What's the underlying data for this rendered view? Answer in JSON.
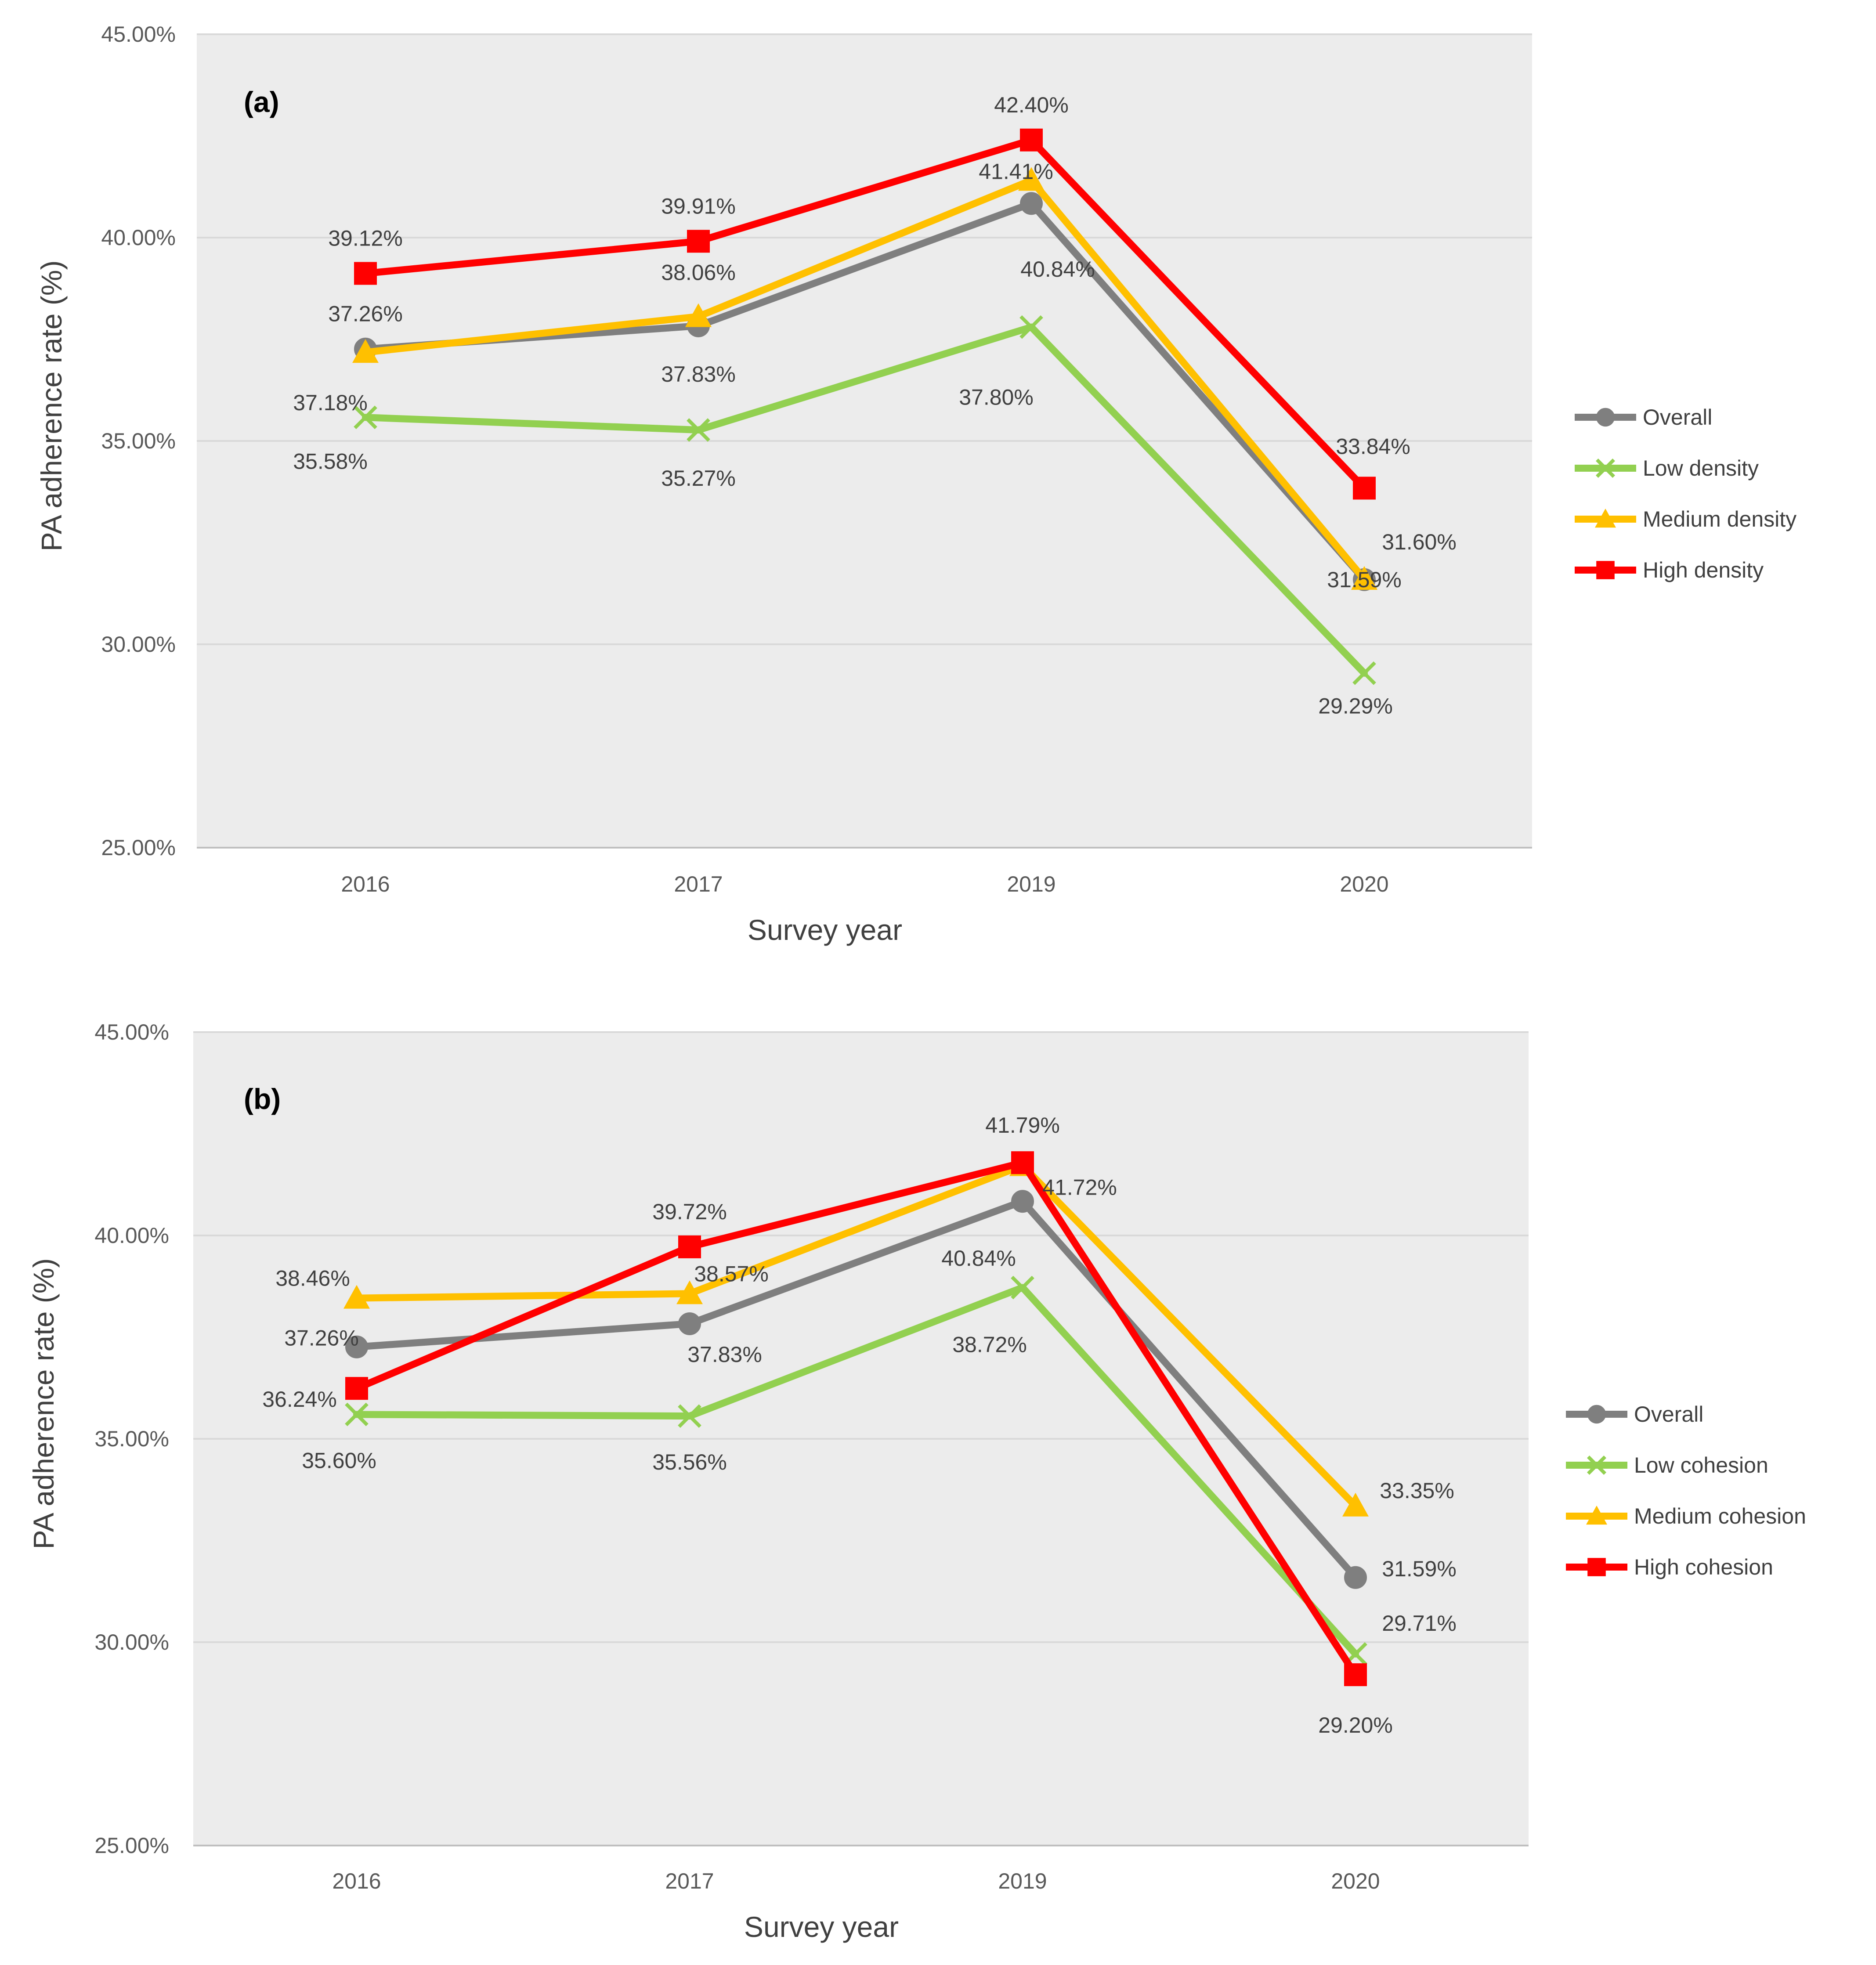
{
  "chart_data": [
    {
      "type": "line",
      "panel_label": "(a)",
      "title": "",
      "xlabel": "Survey year",
      "ylabel": "PA adherence rate (%)",
      "categories": [
        "2016",
        "2017",
        "2019",
        "2020"
      ],
      "ylim": [
        25,
        45
      ],
      "yticks": [
        25,
        30,
        35,
        40,
        45
      ],
      "ytick_labels": [
        "25.00%",
        "30.00%",
        "35.00%",
        "40.00%",
        "45.00%"
      ],
      "grid": true,
      "legend_position": "right",
      "series": [
        {
          "name": "Overall",
          "color": "#7f7f7f",
          "marker": "circle",
          "values": [
            37.26,
            37.83,
            40.84,
            31.59
          ],
          "labels": [
            "37.26%",
            "37.83%",
            "40.84%",
            "31.59%"
          ]
        },
        {
          "name": "Low density",
          "color": "#92d050",
          "marker": "x",
          "values": [
            35.58,
            35.27,
            37.8,
            29.29
          ],
          "labels": [
            "35.58%",
            "35.27%",
            "37.80%",
            "29.29%"
          ]
        },
        {
          "name": "Medium density",
          "color": "#ffc000",
          "marker": "triangle",
          "values": [
            37.18,
            38.06,
            41.41,
            31.6
          ],
          "labels": [
            "37.18%",
            "38.06%",
            "41.41%",
            "31.60%"
          ]
        },
        {
          "name": "High density",
          "color": "#ff0000",
          "marker": "square",
          "values": [
            39.12,
            39.91,
            42.4,
            33.84
          ],
          "labels": [
            "39.12%",
            "39.91%",
            "42.40%",
            "33.84%"
          ]
        }
      ]
    },
    {
      "type": "line",
      "panel_label": "(b)",
      "title": "",
      "xlabel": "Survey year",
      "ylabel": "PA adherence rate (%)",
      "categories": [
        "2016",
        "2017",
        "2019",
        "2020"
      ],
      "ylim": [
        25,
        45
      ],
      "yticks": [
        25,
        30,
        35,
        40,
        45
      ],
      "ytick_labels": [
        "25.00%",
        "30.00%",
        "35.00%",
        "40.00%",
        "45.00%"
      ],
      "grid": true,
      "legend_position": "right",
      "series": [
        {
          "name": "Overall",
          "color": "#7f7f7f",
          "marker": "circle",
          "values": [
            37.26,
            37.83,
            40.84,
            31.59
          ],
          "labels": [
            "37.26%",
            "37.83%",
            "40.84%",
            "31.59%"
          ]
        },
        {
          "name": "Low cohesion",
          "color": "#92d050",
          "marker": "x",
          "values": [
            35.6,
            35.56,
            38.72,
            29.71
          ],
          "labels": [
            "35.60%",
            "35.56%",
            "38.72%",
            "29.71%"
          ]
        },
        {
          "name": "Medium cohesion",
          "color": "#ffc000",
          "marker": "triangle",
          "values": [
            38.46,
            38.57,
            41.72,
            33.35
          ],
          "labels": [
            "38.46%",
            "38.57%",
            "41.72%",
            "33.35%"
          ]
        },
        {
          "name": "High cohesion",
          "color": "#ff0000",
          "marker": "square",
          "values": [
            36.24,
            39.72,
            41.79,
            29.2
          ],
          "labels": [
            "36.24%",
            "39.72%",
            "41.79%",
            "29.20%"
          ]
        }
      ]
    }
  ]
}
